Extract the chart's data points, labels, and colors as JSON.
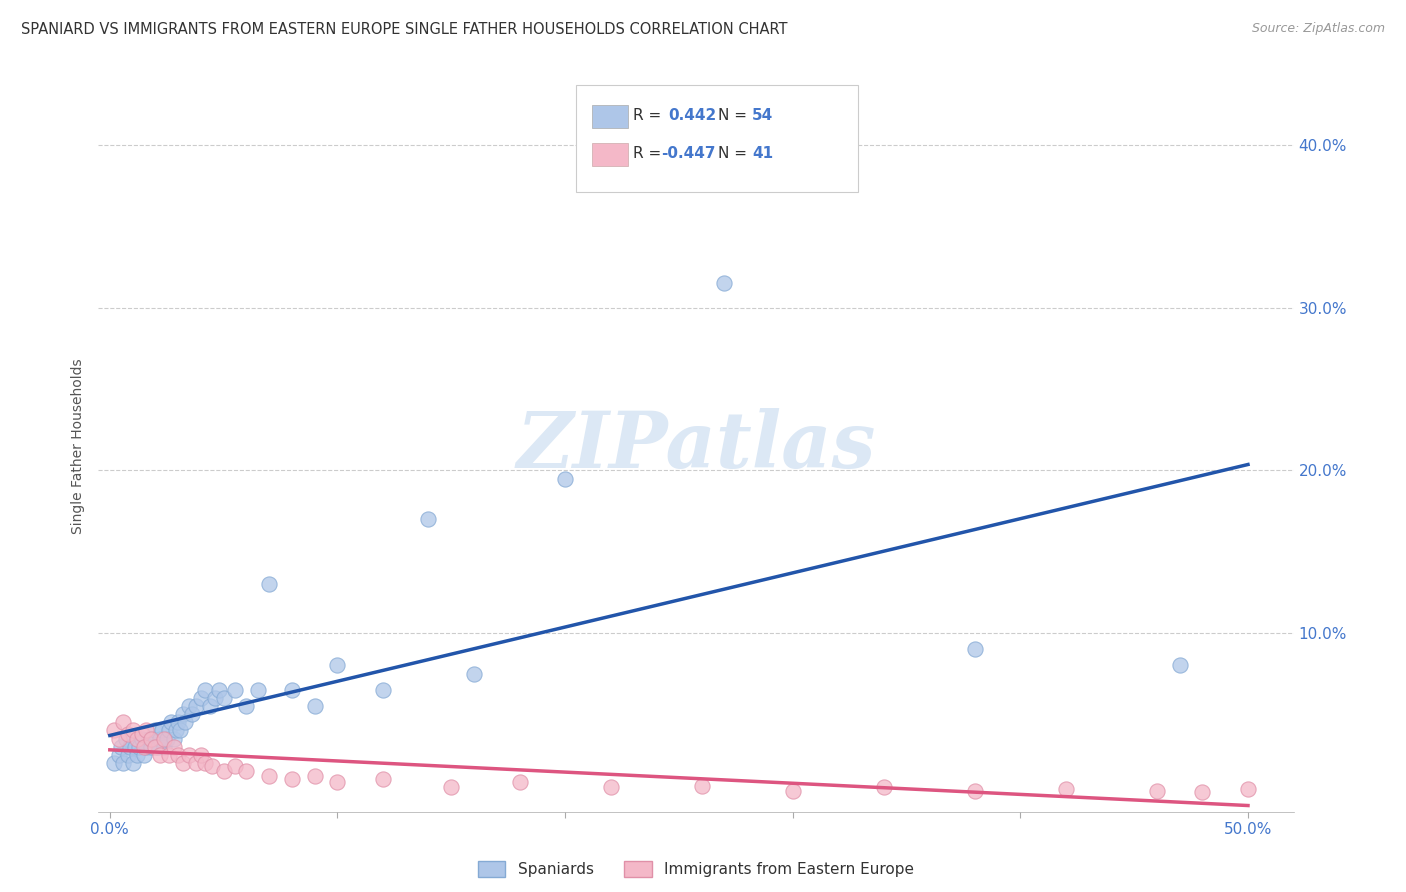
{
  "title": "SPANIARD VS IMMIGRANTS FROM EASTERN EUROPE SINGLE FATHER HOUSEHOLDS CORRELATION CHART",
  "source": "Source: ZipAtlas.com",
  "ylabel": "Single Father Households",
  "ytick_vals": [
    0.0,
    0.1,
    0.2,
    0.3,
    0.4
  ],
  "ytick_labels": [
    "",
    "10.0%",
    "20.0%",
    "30.0%",
    "40.0%"
  ],
  "xlim": [
    -0.005,
    0.52
  ],
  "ylim": [
    -0.01,
    0.44
  ],
  "blue_R": 0.442,
  "blue_N": 54,
  "pink_R": -0.447,
  "pink_N": 41,
  "blue_color": "#aec6e8",
  "blue_edge_color": "#85aad4",
  "blue_line_color": "#2255aa",
  "pink_color": "#f4b8c8",
  "pink_edge_color": "#e090a8",
  "pink_line_color": "#dd5580",
  "legend_label_blue": "Spaniards",
  "legend_label_pink": "Immigrants from Eastern Europe",
  "background_color": "#ffffff",
  "grid_color": "#cccccc",
  "title_color": "#333333",
  "axis_label_color": "#4477cc",
  "watermark_color": "#dce8f5",
  "blue_scatter_x": [
    0.002,
    0.004,
    0.005,
    0.006,
    0.007,
    0.008,
    0.009,
    0.01,
    0.011,
    0.012,
    0.013,
    0.014,
    0.015,
    0.016,
    0.017,
    0.018,
    0.019,
    0.02,
    0.021,
    0.022,
    0.023,
    0.024,
    0.025,
    0.026,
    0.027,
    0.028,
    0.029,
    0.03,
    0.031,
    0.032,
    0.033,
    0.035,
    0.036,
    0.038,
    0.04,
    0.042,
    0.044,
    0.046,
    0.048,
    0.05,
    0.055,
    0.06,
    0.065,
    0.07,
    0.08,
    0.09,
    0.1,
    0.12,
    0.14,
    0.16,
    0.2,
    0.27,
    0.38,
    0.47
  ],
  "blue_scatter_y": [
    0.02,
    0.025,
    0.03,
    0.02,
    0.035,
    0.025,
    0.03,
    0.02,
    0.03,
    0.025,
    0.03,
    0.035,
    0.025,
    0.03,
    0.035,
    0.03,
    0.035,
    0.04,
    0.03,
    0.035,
    0.04,
    0.03,
    0.035,
    0.04,
    0.045,
    0.035,
    0.04,
    0.045,
    0.04,
    0.05,
    0.045,
    0.055,
    0.05,
    0.055,
    0.06,
    0.065,
    0.055,
    0.06,
    0.065,
    0.06,
    0.065,
    0.055,
    0.065,
    0.13,
    0.065,
    0.055,
    0.08,
    0.065,
    0.17,
    0.075,
    0.195,
    0.315,
    0.09,
    0.08
  ],
  "pink_scatter_x": [
    0.002,
    0.004,
    0.006,
    0.008,
    0.01,
    0.012,
    0.014,
    0.015,
    0.016,
    0.018,
    0.02,
    0.022,
    0.024,
    0.026,
    0.028,
    0.03,
    0.032,
    0.035,
    0.038,
    0.04,
    0.042,
    0.045,
    0.05,
    0.055,
    0.06,
    0.07,
    0.08,
    0.09,
    0.1,
    0.12,
    0.15,
    0.18,
    0.22,
    0.26,
    0.3,
    0.34,
    0.38,
    0.42,
    0.46,
    0.48,
    0.5
  ],
  "pink_scatter_y": [
    0.04,
    0.035,
    0.045,
    0.038,
    0.04,
    0.035,
    0.038,
    0.03,
    0.04,
    0.035,
    0.03,
    0.025,
    0.035,
    0.025,
    0.03,
    0.025,
    0.02,
    0.025,
    0.02,
    0.025,
    0.02,
    0.018,
    0.015,
    0.018,
    0.015,
    0.012,
    0.01,
    0.012,
    0.008,
    0.01,
    0.005,
    0.008,
    0.005,
    0.006,
    0.003,
    0.005,
    0.003,
    0.004,
    0.003,
    0.002,
    0.004
  ]
}
